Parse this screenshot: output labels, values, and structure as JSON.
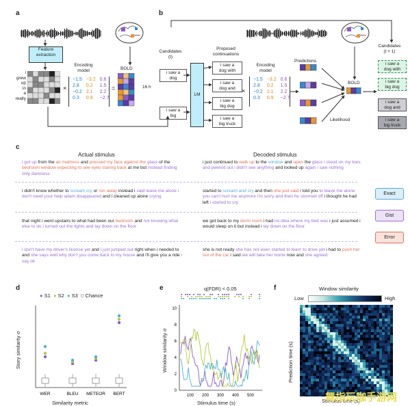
{
  "panel_a": {
    "letter": "a",
    "feature_box": "Feature\nextraction",
    "words": [
      "i",
      "grew",
      "up",
      "in",
      "a",
      "really"
    ],
    "encoding_model": "Encoding\nmodel",
    "bold": "BOLD",
    "hours": "16 h",
    "matrix": [
      [
        "−1.5",
        "−3.2",
        "0.6"
      ],
      [
        "2.8",
        "0.2",
        "1.5"
      ],
      [
        "−0.2",
        "2.1",
        "2.2"
      ],
      [
        "0.3",
        "0.9",
        "−2.7"
      ]
    ],
    "matrix_colors": [
      "#1e7bd0",
      "#d98a1c",
      "#8a4fc4"
    ]
  },
  "panel_b": {
    "letter": "b",
    "candidates_t": "Candidates\n(t)",
    "cand1": "i saw a\ndog",
    "cand2": "i saw a\nbig",
    "lm": "LM",
    "proposed": "Proposed\ncontinuations",
    "conts": [
      "i saw a\ndog with",
      "i saw a\ndog and",
      "i saw a\nbig dog",
      "i saw a\nbig truck"
    ],
    "encoding_model": "Encoding\nmodel",
    "matrix": [
      [
        "−1.5",
        "−3.2",
        "0.6"
      ],
      [
        "2.8",
        "0.2",
        "1.5"
      ],
      [
        "−0.2",
        "2.1",
        "2.2"
      ],
      [
        "0.3",
        "0.9",
        "−2.7"
      ]
    ],
    "predictions": "Predictions",
    "bold": "BOLD",
    "likelihood": "Likelihood",
    "candidates_t1": "Candidates\n(t + 1)",
    "final": [
      "i saw a\ndog with",
      "i saw a\nbig dog",
      "i saw a\ndog and",
      "i saw a\nbig truck"
    ]
  },
  "panel_c": {
    "letter": "c",
    "actual_header": "Actual stimulus",
    "decoded_header": "Decoded stimulus",
    "rows": [
      {
        "actual": "i got up from the air mattress and pressed my face against the glass of the bedroom window expecting to see eyes staring back at me but instead finding only darkness",
        "decoded": "i just continued to walk up to the window and open the glass i stood on my toes and peered out i didn't see anything and looked up again i saw nothing"
      },
      {
        "actual": "i didn't know whether to scream cry or run away instead i said leave me alone i don't need your help adam disappeared and i cleaned up alone crying",
        "decoded": "started to scream and cry and then she just said i told you to leave me alone you can't hurt me anymore i'm sorry and then he stormed off i thought he had left i started to cry"
      },
      {
        "actual": "that night i went upstairs to what had been our bedroom and not knowing what else to do i turned out the lights and lay down on the floor",
        "decoded": "we got back to my dorm room i had no idea where my bed was i just assumed i would sleep on it but instead i lay down on the floor"
      },
      {
        "actual": "i don't have my driver's license yet and i just jumped out right when i needed to and she says well why don't you come back to my house and i'll give you a ride i say ok",
        "decoded": "she is not ready she has not even started to learn to drive yet i had to push her out of the car i said we will take her home now and she agreed"
      }
    ],
    "legend": [
      {
        "label": "Exact",
        "color": "#5aa9d9",
        "bg": "#dbeefa"
      },
      {
        "label": "Gist",
        "color": "#9b6fd3",
        "bg": "#ece2f8"
      },
      {
        "label": "Error",
        "color": "#e0705a",
        "bg": "#fbe3dc"
      }
    ]
  },
  "panel_d": {
    "letter": "d",
    "legend": [
      "S1",
      "S2",
      "S3",
      "Chance"
    ],
    "ylabel": "Story similarity σ",
    "xlabel": "Similarity metric",
    "metrics": [
      "WER",
      "BLEU",
      "METEOR",
      "BERT"
    ]
  },
  "panel_e": {
    "letter": "e",
    "title": "q(FDR) < 0.05",
    "ylabel": "Window similarity σ",
    "xlabel": "Stimulus time (s)",
    "yticks": [
      "0",
      "2",
      "4",
      "6",
      "8",
      "10"
    ],
    "xticks": [
      "100",
      "200",
      "300",
      "400",
      "500"
    ]
  },
  "panel_f": {
    "letter": "f",
    "title": "Window similarity",
    "low": "Low",
    "high": "High",
    "ylabel": "Prediction time (s)",
    "xlabel": "Stimulus time (s)"
  },
  "watermark": "舞指玩咖手游网",
  "chart_data": [
    {
      "type": "scatter",
      "title": "",
      "xlabel": "Similarity metric",
      "ylabel": "Story similarity σ",
      "categories": [
        "WER",
        "BLEU",
        "METEOR",
        "BERT"
      ],
      "series": [
        {
          "name": "S1",
          "values": [
            9,
            7,
            8,
            19
          ]
        },
        {
          "name": "S2",
          "values": [
            10,
            7.5,
            8.5,
            20
          ]
        },
        {
          "name": "S3",
          "values": [
            12,
            8,
            9,
            21
          ]
        },
        {
          "name": "Chance",
          "values": [
            0,
            0,
            0,
            0
          ]
        }
      ],
      "colors": {
        "S1": "#8a5cc8",
        "S2": "#b7c93a",
        "S3": "#4fb3c8",
        "Chance": "#888888"
      }
    }
  ]
}
